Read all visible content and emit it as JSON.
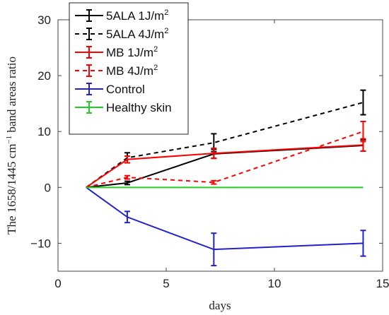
{
  "chart_data": {
    "type": "line",
    "xlabel": "days",
    "ylabel_main": "The 1658/1445 cm",
    "ylabel_sup": "−1",
    "ylabel_rest": " band areas ratio",
    "xlim": [
      0,
      15
    ],
    "ylim": [
      -15,
      30
    ],
    "xticks": [
      "0",
      "5",
      "10",
      "15"
    ],
    "yticks": [
      "−10",
      "0",
      "10",
      "20",
      "30"
    ],
    "xtick_values": [
      0,
      5,
      10,
      15
    ],
    "ytick_values": [
      -10,
      0,
      10,
      20,
      30
    ],
    "legend_position": "top-left",
    "grid": false,
    "series": [
      {
        "name": "5ALA 1J/m",
        "sup": "2",
        "color": "#000000",
        "dash": "solid",
        "x": [
          1.3,
          3.2,
          7.2,
          14.1
        ],
        "y": [
          0,
          0.8,
          6.0,
          7.5
        ],
        "err": [
          0,
          0.3,
          0.8,
          1.0
        ]
      },
      {
        "name": "5ALA 4J/m",
        "sup": "2",
        "color": "#000000",
        "dash": "dashed",
        "x": [
          1.3,
          3.2,
          7.2,
          14.1
        ],
        "y": [
          0,
          5.3,
          8.0,
          15.2
        ],
        "err": [
          0,
          0.9,
          1.6,
          2.2
        ]
      },
      {
        "name": "MB 1J/m",
        "sup": "2",
        "color": "#ff0000",
        "dash": "solid",
        "x": [
          1.3,
          3.2,
          7.2,
          14.1
        ],
        "y": [
          0,
          5.0,
          6.1,
          7.6
        ],
        "err": [
          0,
          0.6,
          0.9,
          1.1
        ]
      },
      {
        "name": "MB 4J/m",
        "sup": "2",
        "color": "#ff0000",
        "dash": "dashed",
        "x": [
          1.3,
          3.2,
          7.2,
          14.1
        ],
        "y": [
          0,
          1.8,
          0.9,
          10.0
        ],
        "err": [
          0,
          0.3,
          0.3,
          1.8
        ]
      },
      {
        "name": "Control",
        "sup": "",
        "color": "#2222cc",
        "dash": "solid",
        "x": [
          1.3,
          3.2,
          7.2,
          14.1
        ],
        "y": [
          0,
          -5.3,
          -11.1,
          -10.0
        ],
        "err": [
          0,
          1.0,
          2.9,
          2.3
        ]
      },
      {
        "name": "Healthy skin",
        "sup": "",
        "color": "#22cc22",
        "dash": "solid",
        "x": [
          1.3,
          14.1
        ],
        "y": [
          0,
          0
        ],
        "err": [
          0,
          0
        ]
      }
    ]
  }
}
